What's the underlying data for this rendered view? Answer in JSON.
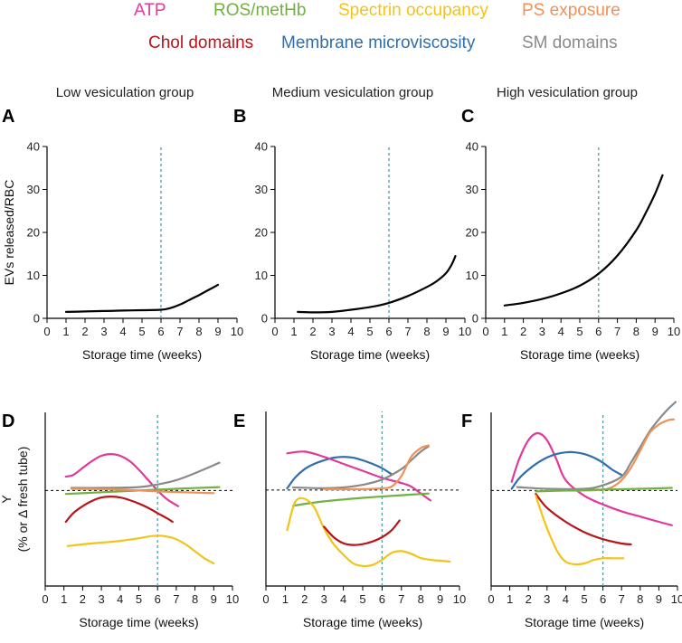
{
  "legend": [
    {
      "label": "ATP",
      "color": "#e0399b"
    },
    {
      "label": "ROS/metHb",
      "color": "#72b044"
    },
    {
      "label": "Spectrin occupancy",
      "color": "#f2c318"
    },
    {
      "label": "PS exposure",
      "color": "#f0915a"
    },
    {
      "label": "Chol domains",
      "color": "#b8141a"
    },
    {
      "label": "Membrane microviscosity",
      "color": "#2f6fae"
    },
    {
      "label": "SM domains",
      "color": "#8a8a8a"
    }
  ],
  "groups": [
    "Low vesiculation group",
    "Medium vesiculation group",
    "High vesiculation group"
  ],
  "colors": {
    "axis": "#000000",
    "curve": "#000000",
    "marker": "#3aa6b0",
    "baseline": "#000000"
  },
  "chart_data": [
    {
      "panel": "A",
      "type": "line",
      "group": "Low vesiculation group",
      "xlabel": "Storage time (weeks)",
      "ylabel": "EVs released/RBC",
      "xlim": [
        0,
        10
      ],
      "ylim": [
        0,
        40
      ],
      "xticks": [
        "0",
        "1",
        "2",
        "3",
        "4",
        "5",
        "6",
        "7",
        "8",
        "9",
        "10"
      ],
      "yticks": [
        "0",
        "10",
        "20",
        "30",
        "40"
      ],
      "vline_x": 6,
      "series": [
        {
          "name": "EVs released/RBC",
          "x": [
            1,
            2,
            3,
            4,
            5,
            6,
            6.5,
            7,
            7.5,
            8,
            8.5,
            9
          ],
          "y": [
            1.5,
            1.6,
            1.7,
            1.8,
            1.9,
            2.0,
            2.4,
            3.2,
            4.3,
            5.4,
            6.6,
            7.8
          ]
        }
      ]
    },
    {
      "panel": "B",
      "type": "line",
      "group": "Medium vesiculation group",
      "xlabel": "Storage time (weeks)",
      "ylabel": "",
      "xlim": [
        0,
        10
      ],
      "ylim": [
        0,
        40
      ],
      "xticks": [
        "0",
        "1",
        "2",
        "3",
        "4",
        "5",
        "6",
        "7",
        "8",
        "9",
        "10"
      ],
      "yticks": [
        "0",
        "10",
        "20",
        "30",
        "40"
      ],
      "vline_x": 6,
      "series": [
        {
          "name": "EVs released/RBC",
          "x": [
            1.2,
            2,
            3,
            4,
            5,
            6,
            7,
            8,
            8.5,
            9,
            9.3,
            9.5
          ],
          "y": [
            1.5,
            1.4,
            1.5,
            2.0,
            2.6,
            3.6,
            5.2,
            7.3,
            8.6,
            10.5,
            12.5,
            14.5
          ]
        }
      ]
    },
    {
      "panel": "C",
      "type": "line",
      "group": "High vesiculation group",
      "xlabel": "Storage time (weeks)",
      "ylabel": "",
      "xlim": [
        0,
        10
      ],
      "ylim": [
        0,
        40
      ],
      "xticks": [
        "0",
        "1",
        "2",
        "3",
        "4",
        "5",
        "6",
        "7",
        "8",
        "9",
        "10"
      ],
      "yticks": [
        "0",
        "10",
        "20",
        "30",
        "40"
      ],
      "vline_x": 6,
      "series": [
        {
          "name": "EVs released/RBC",
          "x": [
            1,
            2,
            3,
            4,
            5,
            6,
            7,
            8,
            8.5,
            9,
            9.4
          ],
          "y": [
            3.0,
            3.6,
            4.5,
            5.8,
            7.6,
            10.4,
            14.6,
            20.5,
            24.5,
            29.0,
            33.3
          ]
        }
      ]
    },
    {
      "panel": "D",
      "type": "line",
      "group": "Low vesiculation group",
      "xlabel": "Storage time (weeks)",
      "ylabel": "Y",
      "ylabel2": "(% or Δ fresh tube)",
      "xlim": [
        0,
        10
      ],
      "ylim": [
        0,
        10
      ],
      "xticks": [
        "0",
        "1",
        "2",
        "3",
        "4",
        "5",
        "6",
        "7",
        "8",
        "9",
        "10"
      ],
      "yticks": [],
      "vline_x": 6,
      "baseline_y": 5.5,
      "series": [
        {
          "name": "ATP",
          "color": "#e0399b",
          "x": [
            1.1,
            1.5,
            2,
            2.5,
            3,
            3.5,
            4,
            4.5,
            5,
            5.5,
            6,
            6.5,
            7.1
          ],
          "y": [
            6.3,
            6.4,
            6.8,
            7.2,
            7.5,
            7.6,
            7.5,
            7.2,
            6.7,
            6.1,
            5.5,
            5.0,
            4.6
          ]
        },
        {
          "name": "SM domains",
          "color": "#8a8a8a",
          "x": [
            1.4,
            3,
            5,
            6,
            7,
            8,
            9.3
          ],
          "y": [
            5.65,
            5.65,
            5.7,
            5.85,
            6.1,
            6.5,
            7.1
          ]
        },
        {
          "name": "ROS/metHb",
          "color": "#72b044",
          "x": [
            1.1,
            3,
            5,
            7,
            9.3
          ],
          "y": [
            5.3,
            5.4,
            5.5,
            5.6,
            5.7
          ]
        },
        {
          "name": "PS exposure",
          "color": "#f0915a",
          "x": [
            1.4,
            4,
            6,
            9
          ],
          "y": [
            5.6,
            5.55,
            5.45,
            5.35
          ]
        },
        {
          "name": "Chol domains",
          "color": "#b8141a",
          "x": [
            1.1,
            1.5,
            2,
            2.5,
            3,
            3.5,
            4,
            4.5,
            5,
            5.5,
            6,
            6.5,
            6.8
          ],
          "y": [
            3.7,
            4.2,
            4.6,
            4.9,
            5.1,
            5.15,
            5.1,
            4.95,
            4.75,
            4.5,
            4.2,
            3.9,
            3.7
          ]
        },
        {
          "name": "Spectrin occupancy",
          "color": "#f2c318",
          "x": [
            1.2,
            2,
            3,
            4,
            5,
            5.5,
            6,
            6.5,
            7,
            7.5,
            8,
            8.5,
            9
          ],
          "y": [
            2.3,
            2.4,
            2.5,
            2.6,
            2.75,
            2.85,
            2.9,
            2.85,
            2.7,
            2.4,
            2.0,
            1.6,
            1.3
          ]
        }
      ]
    },
    {
      "panel": "E",
      "type": "line",
      "group": "Medium vesiculation group",
      "xlabel": "Storage time (weeks)",
      "ylabel": "",
      "xlim": [
        0,
        10
      ],
      "ylim": [
        0,
        10
      ],
      "xticks": [
        "0",
        "1",
        "2",
        "3",
        "4",
        "5",
        "6",
        "7",
        "8",
        "9",
        "10"
      ],
      "yticks": [],
      "vline_x": 6,
      "baseline_y": 5.5,
      "series": [
        {
          "name": "Membrane microviscosity",
          "color": "#2f6fae",
          "x": [
            1.1,
            1.5,
            2,
            2.5,
            3,
            3.5,
            4,
            4.5,
            5,
            5.5,
            6,
            6.5
          ],
          "y": [
            5.6,
            6.2,
            6.7,
            7.0,
            7.2,
            7.35,
            7.4,
            7.35,
            7.2,
            7.0,
            6.75,
            6.4
          ]
        },
        {
          "name": "ATP",
          "color": "#e0399b",
          "x": [
            1.1,
            2,
            3,
            4,
            5,
            6,
            7,
            7.5,
            8,
            8.5
          ],
          "y": [
            7.6,
            7.7,
            7.4,
            7.0,
            6.6,
            6.2,
            5.9,
            5.7,
            5.3,
            4.9
          ]
        },
        {
          "name": "SM domains",
          "color": "#8a8a8a",
          "x": [
            1.4,
            3,
            4,
            5,
            6,
            7,
            7.5,
            8,
            8.4
          ],
          "y": [
            5.65,
            5.6,
            5.65,
            5.8,
            6.1,
            6.7,
            7.2,
            7.7,
            8.0
          ]
        },
        {
          "name": "PS exposure",
          "color": "#f0915a",
          "x": [
            3,
            5,
            6,
            6.5,
            7,
            7.5,
            8,
            8.4
          ],
          "y": [
            5.55,
            5.55,
            5.6,
            5.7,
            6.3,
            7.4,
            7.9,
            8.05
          ]
        },
        {
          "name": "ROS/metHb",
          "color": "#72b044",
          "x": [
            1.4,
            3,
            5,
            7,
            8.4
          ],
          "y": [
            4.6,
            4.85,
            5.05,
            5.2,
            5.3
          ]
        },
        {
          "name": "Spectrin occupancy",
          "color": "#f2c318",
          "x": [
            1.1,
            1.5,
            2,
            2.5,
            3,
            3.5,
            4,
            4.5,
            5,
            5.5,
            6,
            6.5,
            7,
            7.5,
            8,
            8.5,
            9,
            9.5
          ],
          "y": [
            3.2,
            4.8,
            5.0,
            4.5,
            3.3,
            2.4,
            1.8,
            1.3,
            1.15,
            1.2,
            1.5,
            1.9,
            2.0,
            1.85,
            1.6,
            1.5,
            1.45,
            1.4
          ]
        },
        {
          "name": "Chol domains",
          "color": "#b8141a",
          "x": [
            3,
            3.5,
            4,
            4.5,
            5,
            5.5,
            6,
            6.5,
            6.9
          ],
          "y": [
            3.4,
            2.8,
            2.45,
            2.35,
            2.4,
            2.55,
            2.8,
            3.2,
            3.75
          ]
        }
      ]
    },
    {
      "panel": "F",
      "type": "line",
      "group": "High vesiculation group",
      "xlabel": "Storage time (weeks)",
      "ylabel": "",
      "xlim": [
        0,
        10
      ],
      "ylim": [
        0,
        10
      ],
      "xticks": [
        "0",
        "1",
        "2",
        "3",
        "4",
        "5",
        "6",
        "7",
        "8",
        "9",
        "10"
      ],
      "yticks": [],
      "vline_x": 6,
      "baseline_y": 5.5,
      "series": [
        {
          "name": "ATP",
          "color": "#e0399b",
          "x": [
            1.1,
            1.5,
            2,
            2.5,
            3,
            3.5,
            4,
            5,
            6,
            7,
            8,
            9,
            9.7
          ],
          "y": [
            6.0,
            7.3,
            8.4,
            8.8,
            8.4,
            7.3,
            6.1,
            5.2,
            4.7,
            4.3,
            4.0,
            3.7,
            3.5
          ]
        },
        {
          "name": "Membrane microviscosity",
          "color": "#2f6fae",
          "x": [
            1.1,
            1.5,
            2,
            2.5,
            3,
            3.5,
            4,
            4.5,
            5,
            5.5,
            6,
            6.5,
            7
          ],
          "y": [
            5.6,
            6.2,
            6.7,
            7.1,
            7.4,
            7.6,
            7.7,
            7.7,
            7.6,
            7.4,
            7.1,
            6.7,
            6.4
          ]
        },
        {
          "name": "SM domains",
          "color": "#8a8a8a",
          "x": [
            1.4,
            3,
            5,
            6,
            7,
            7.5,
            8,
            8.5,
            9,
            9.5,
            9.9
          ],
          "y": [
            5.7,
            5.6,
            5.6,
            5.8,
            6.3,
            7.1,
            8.0,
            8.9,
            9.6,
            10.2,
            10.6
          ]
        },
        {
          "name": "PS exposure",
          "color": "#f0915a",
          "x": [
            3,
            5,
            6,
            6.5,
            7,
            7.5,
            8,
            8.5,
            9,
            9.5,
            9.8
          ],
          "y": [
            5.5,
            5.5,
            5.55,
            5.7,
            6.1,
            6.8,
            7.8,
            8.8,
            9.3,
            9.55,
            9.6
          ]
        },
        {
          "name": "ROS/metHb",
          "color": "#72b044",
          "x": [
            2.4,
            4,
            6,
            8,
            9.7
          ],
          "y": [
            5.45,
            5.5,
            5.55,
            5.6,
            5.65
          ]
        },
        {
          "name": "Chol domains",
          "color": "#b8141a",
          "x": [
            2.4,
            3,
            4,
            5,
            6,
            7,
            7.5
          ],
          "y": [
            5.3,
            4.5,
            3.7,
            3.1,
            2.7,
            2.45,
            2.4
          ]
        },
        {
          "name": "Spectrin occupancy",
          "color": "#f2c318",
          "x": [
            2.4,
            2.8,
            3.2,
            3.6,
            4,
            4.5,
            5,
            5.5,
            6,
            6.5,
            7.1
          ],
          "y": [
            5.2,
            3.9,
            2.8,
            1.9,
            1.4,
            1.25,
            1.3,
            1.5,
            1.6,
            1.6,
            1.6
          ]
        }
      ]
    }
  ]
}
